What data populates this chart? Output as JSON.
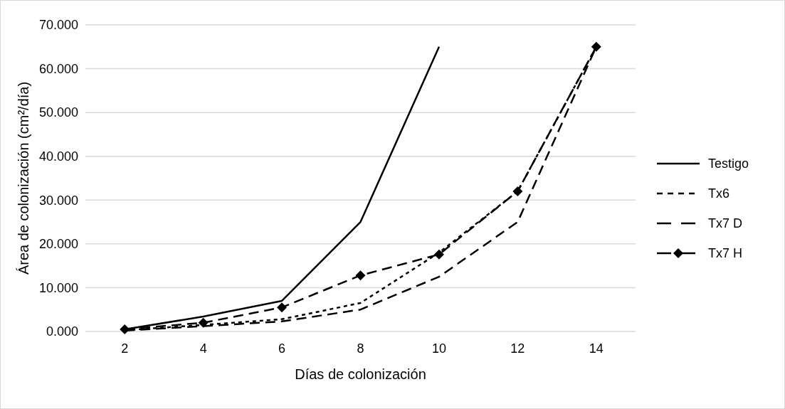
{
  "chart_data": {
    "type": "line",
    "xlabel": "Días de colonización",
    "ylabel": "Área de colonización (cm²/día)",
    "categories": [
      "2",
      "4",
      "6",
      "8",
      "10",
      "12",
      "14"
    ],
    "series": [
      {
        "name": "Testigo",
        "color": "#000000",
        "line_style": "solid",
        "marker": "none",
        "values": [
          0.5,
          3.4,
          7.0,
          25.0,
          65.0,
          null,
          null
        ]
      },
      {
        "name": "Tx6",
        "color": "#000000",
        "line_style": "dotted",
        "marker": "none",
        "values": [
          0.3,
          1.5,
          2.8,
          6.5,
          18.0,
          32.0,
          65.0
        ]
      },
      {
        "name": "Tx7 D",
        "color": "#000000",
        "line_style": "dashed",
        "marker": "none",
        "values": [
          0.2,
          1.2,
          2.3,
          5.0,
          12.5,
          25.0,
          65.0
        ]
      },
      {
        "name": "Tx7 H",
        "color": "#000000",
        "line_style": "dashed",
        "marker": "diamond",
        "values": [
          0.5,
          2.0,
          5.5,
          12.8,
          17.6,
          32.0,
          65.0
        ]
      }
    ],
    "ylim": [
      0,
      70
    ],
    "yticks": [
      {
        "value": 0,
        "label": "0.000"
      },
      {
        "value": 10,
        "label": "10.000"
      },
      {
        "value": 20,
        "label": "20.000"
      },
      {
        "value": 30,
        "label": "30.000"
      },
      {
        "value": 40,
        "label": "40.000"
      },
      {
        "value": 50,
        "label": "50.000"
      },
      {
        "value": 60,
        "label": "60.000"
      },
      {
        "value": 70,
        "label": "70.000"
      }
    ],
    "grid": "y",
    "legend": "right"
  }
}
